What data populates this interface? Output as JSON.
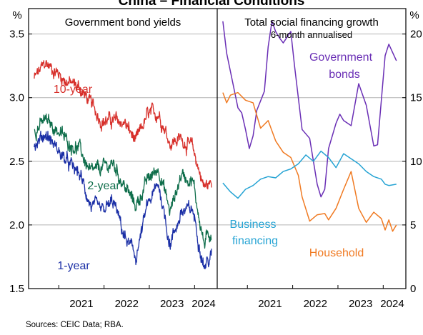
{
  "title": "China – Financial Conditions",
  "source": "Sources: CEIC Data; RBA.",
  "colors": {
    "red": "#d7302b",
    "green": "#0f6e4b",
    "blue": "#1b2fa6",
    "purple": "#6a2fb5",
    "orange": "#f07a22",
    "cyan": "#27a4d4",
    "grid": "#b4b4b4"
  },
  "chart_data": [
    {
      "type": "line",
      "title": "Government bond yields",
      "unit_label": "%",
      "ylim": [
        1.5,
        3.7
      ],
      "y_ticks": [
        "1.5",
        "2.0",
        "2.5",
        "3.0",
        "3.5"
      ],
      "x_ticks": [
        "2021",
        "2022",
        "2023",
        "2024"
      ],
      "grid": true,
      "series": [
        {
          "name": "10-year",
          "color_key": "red",
          "x": [
            "2020-06",
            "2020-09",
            "2020-12",
            "2021-03",
            "2021-06",
            "2021-09",
            "2021-12",
            "2022-03",
            "2022-06",
            "2022-09",
            "2022-12",
            "2023-03",
            "2023-06",
            "2023-09",
            "2023-12",
            "2024-03",
            "2024-05"
          ],
          "values": [
            3.15,
            3.27,
            3.2,
            3.12,
            3.08,
            2.95,
            2.82,
            2.82,
            2.8,
            2.65,
            2.86,
            2.88,
            2.65,
            2.68,
            2.6,
            2.3,
            2.33
          ]
        },
        {
          "name": "2-year",
          "color_key": "green",
          "x": [
            "2020-06",
            "2020-09",
            "2020-12",
            "2021-03",
            "2021-06",
            "2021-09",
            "2021-12",
            "2022-03",
            "2022-06",
            "2022-09",
            "2022-12",
            "2023-03",
            "2023-06",
            "2023-09",
            "2023-12",
            "2024-03",
            "2024-05"
          ],
          "values": [
            2.75,
            2.82,
            2.75,
            2.65,
            2.6,
            2.4,
            2.45,
            2.48,
            2.3,
            2.15,
            2.35,
            2.45,
            2.1,
            2.4,
            2.35,
            1.85,
            1.95
          ]
        },
        {
          "name": "1-year",
          "color_key": "blue",
          "x": [
            "2020-06",
            "2020-09",
            "2020-12",
            "2021-03",
            "2021-06",
            "2021-09",
            "2021-12",
            "2022-03",
            "2022-06",
            "2022-09",
            "2022-12",
            "2023-03",
            "2023-06",
            "2023-09",
            "2023-12",
            "2024-03",
            "2024-05"
          ],
          "values": [
            2.62,
            2.72,
            2.6,
            2.48,
            2.4,
            2.15,
            2.1,
            2.18,
            1.9,
            1.75,
            2.15,
            2.32,
            1.85,
            2.1,
            2.12,
            1.68,
            1.75
          ]
        }
      ]
    },
    {
      "type": "line",
      "title": "Total social financing growth",
      "subtitle": "6-month annualised",
      "unit_label": "%",
      "ylim": [
        0,
        22
      ],
      "y_ticks": [
        "0",
        "5",
        "10",
        "15",
        "20"
      ],
      "x_ticks": [
        "2021",
        "2022",
        "2023",
        "2024"
      ],
      "grid": true,
      "series": [
        {
          "name": "Government bonds",
          "color_key": "purple",
          "x": [
            "2020-06",
            "2020-07",
            "2020-10",
            "2020-11",
            "2020-12",
            "2021-01",
            "2021-02",
            "2021-03",
            "2021-05",
            "2021-06",
            "2021-07",
            "2021-08",
            "2021-09",
            "2021-10",
            "2021-12",
            "2022-01",
            "2022-03",
            "2022-05",
            "2022-07",
            "2022-08",
            "2022-09",
            "2022-10",
            "2022-12",
            "2023-01",
            "2023-02",
            "2023-04",
            "2023-06",
            "2023-08",
            "2023-10",
            "2023-11",
            "2024-01",
            "2024-02",
            "2024-04"
          ],
          "values": [
            21,
            18.5,
            14.2,
            13.8,
            12.5,
            11,
            12,
            14,
            15.5,
            19,
            21,
            20.2,
            19.7,
            19.3,
            20.2,
            17.5,
            12.5,
            11.8,
            8.2,
            7.2,
            7.8,
            11,
            13,
            13.7,
            13.2,
            12.8,
            16.1,
            14.4,
            11.2,
            11.3,
            18.3,
            19.2,
            17.9
          ]
        },
        {
          "name": "Household",
          "color_key": "orange",
          "x": [
            "2020-06",
            "2020-07",
            "2020-08",
            "2020-10",
            "2020-12",
            "2021-02",
            "2021-04",
            "2021-06",
            "2021-08",
            "2021-10",
            "2021-12",
            "2022-02",
            "2022-03",
            "2022-05",
            "2022-07",
            "2022-09",
            "2022-10",
            "2022-12",
            "2023-02",
            "2023-04",
            "2023-06",
            "2023-08",
            "2023-10",
            "2023-12",
            "2024-01",
            "2024-02",
            "2024-03",
            "2024-04"
          ],
          "values": [
            15.4,
            14.6,
            15.2,
            15.4,
            14.8,
            14.6,
            12.6,
            13.2,
            11.6,
            10.7,
            10.3,
            8.9,
            7.2,
            5.3,
            5.8,
            5.9,
            5.4,
            6.3,
            7.8,
            9.2,
            6.3,
            5.2,
            6.0,
            5.5,
            4.6,
            5.4,
            4.5,
            5.0
          ]
        },
        {
          "name": "Business financing",
          "color_key": "cyan",
          "x": [
            "2020-06",
            "2020-08",
            "2020-10",
            "2020-12",
            "2021-02",
            "2021-04",
            "2021-06",
            "2021-08",
            "2021-10",
            "2021-12",
            "2022-02",
            "2022-04",
            "2022-06",
            "2022-08",
            "2022-10",
            "2022-12",
            "2023-02",
            "2023-04",
            "2023-06",
            "2023-08",
            "2023-10",
            "2023-12",
            "2024-01",
            "2024-02",
            "2024-04"
          ],
          "values": [
            8.3,
            7.6,
            7.1,
            7.8,
            8.1,
            8.6,
            8.8,
            8.7,
            9.2,
            9.4,
            9.8,
            10.5,
            10.0,
            10.8,
            10.3,
            9.5,
            10.6,
            10.2,
            9.8,
            9.2,
            8.8,
            8.6,
            8.2,
            8.1,
            8.2
          ]
        }
      ]
    }
  ]
}
